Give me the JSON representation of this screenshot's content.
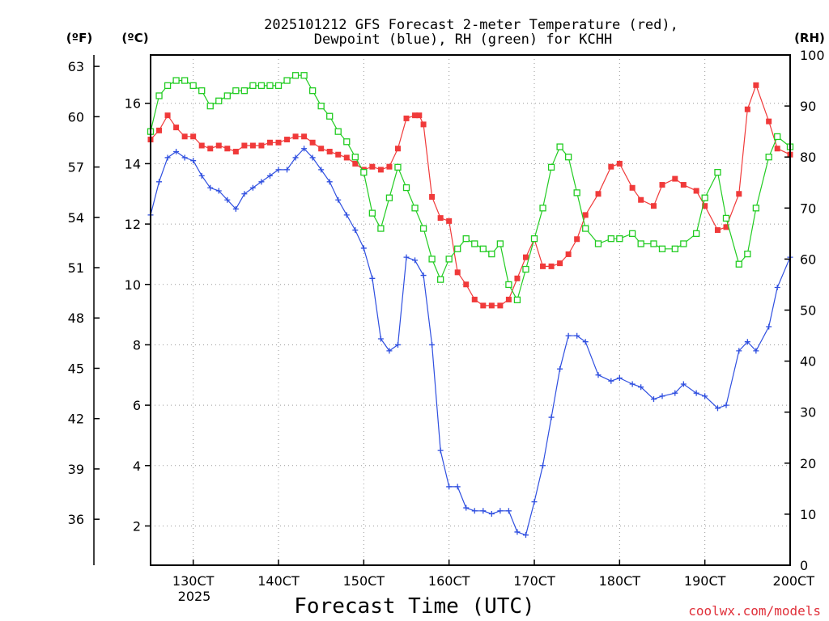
{
  "title_line1": "2025101212 GFS Forecast 2-meter Temperature (red),",
  "title_line2": "Dewpoint (blue), RH (green) for KCHH",
  "units": {
    "left_f": "(ºF)",
    "left_c": "(ºC)",
    "right_rh": "(RH)"
  },
  "xlabel": "Forecast Time (UTC)",
  "credit": "coolwx.com/models",
  "year_label": "2025",
  "colors": {
    "temperature": "#f03a3a",
    "dewpoint": "#2f4fe0",
    "rh": "#22cc22",
    "credit": "#e0303a"
  },
  "chart_data": {
    "type": "line",
    "title": "2025101212 GFS Forecast 2-meter Temperature (red), Dewpoint (blue), RH (green) for KCHH",
    "xlabel": "Forecast Time (UTC)",
    "x_unit": "day of October 2025 (fractional)",
    "xlim": [
      12.5,
      20.0
    ],
    "x_ticks": [
      {
        "x": 13,
        "label": "130CT"
      },
      {
        "x": 14,
        "label": "140CT"
      },
      {
        "x": 15,
        "label": "150CT"
      },
      {
        "x": 16,
        "label": "160CT"
      },
      {
        "x": 17,
        "label": "170CT"
      },
      {
        "x": 18,
        "label": "180CT"
      },
      {
        "x": 19,
        "label": "190CT"
      },
      {
        "x": 20,
        "label": "200CT"
      }
    ],
    "y_celsius": {
      "ylim": [
        0.7,
        17.6
      ],
      "ticks": [
        2,
        4,
        6,
        8,
        10,
        12,
        14,
        16
      ]
    },
    "y_fahrenheit": {
      "ticks": [
        36,
        39,
        42,
        45,
        48,
        51,
        54,
        57,
        60,
        63
      ]
    },
    "y_rh": {
      "ylim": [
        0,
        100
      ],
      "ticks": [
        0,
        10,
        20,
        30,
        40,
        50,
        60,
        70,
        80,
        90,
        100
      ]
    },
    "series": [
      {
        "name": "Temperature (red)",
        "axis": "celsius",
        "marker": "filled-square",
        "x": [
          12.5,
          12.6,
          12.7,
          12.8,
          12.9,
          13.0,
          13.1,
          13.2,
          13.3,
          13.4,
          13.5,
          13.6,
          13.7,
          13.8,
          13.9,
          14.0,
          14.1,
          14.2,
          14.3,
          14.4,
          14.5,
          14.6,
          14.7,
          14.8,
          14.9,
          15.0,
          15.1,
          15.2,
          15.3,
          15.4,
          15.5,
          15.6,
          15.65,
          15.7,
          15.8,
          15.9,
          16.0,
          16.1,
          16.2,
          16.3,
          16.4,
          16.5,
          16.6,
          16.7,
          16.8,
          16.9,
          17.0,
          17.1,
          17.2,
          17.3,
          17.4,
          17.5,
          17.6,
          17.75,
          17.9,
          18.0,
          18.15,
          18.25,
          18.4,
          18.5,
          18.65,
          18.75,
          18.9,
          19.0,
          19.15,
          19.25,
          19.4,
          19.5,
          19.6,
          19.75,
          19.85,
          20.0
        ],
        "values": [
          14.8,
          15.1,
          15.6,
          15.2,
          14.9,
          14.9,
          14.6,
          14.5,
          14.6,
          14.5,
          14.4,
          14.6,
          14.6,
          14.6,
          14.7,
          14.7,
          14.8,
          14.9,
          14.9,
          14.7,
          14.5,
          14.4,
          14.3,
          14.2,
          14.0,
          13.8,
          13.9,
          13.8,
          13.9,
          14.5,
          15.5,
          15.6,
          15.6,
          15.3,
          12.9,
          12.2,
          12.1,
          10.4,
          10.0,
          9.5,
          9.3,
          9.3,
          9.3,
          9.5,
          10.2,
          10.9,
          11.5,
          10.6,
          10.6,
          10.7,
          11.0,
          11.5,
          12.3,
          13.0,
          13.9,
          14.0,
          13.2,
          12.8,
          12.6,
          13.3,
          13.5,
          13.3,
          13.1,
          12.6,
          11.8,
          11.9,
          13.0,
          15.8,
          16.6,
          15.4,
          14.5,
          14.3
        ]
      },
      {
        "name": "Dewpoint (blue)",
        "axis": "celsius",
        "marker": "plus",
        "x": [
          12.5,
          12.6,
          12.7,
          12.8,
          12.9,
          13.0,
          13.1,
          13.2,
          13.3,
          13.4,
          13.5,
          13.6,
          13.7,
          13.8,
          13.9,
          14.0,
          14.1,
          14.2,
          14.3,
          14.4,
          14.5,
          14.6,
          14.7,
          14.8,
          14.9,
          15.0,
          15.1,
          15.2,
          15.3,
          15.4,
          15.5,
          15.6,
          15.7,
          15.8,
          15.9,
          16.0,
          16.1,
          16.2,
          16.3,
          16.4,
          16.5,
          16.6,
          16.7,
          16.8,
          16.9,
          17.0,
          17.1,
          17.2,
          17.3,
          17.4,
          17.5,
          17.6,
          17.75,
          17.9,
          18.0,
          18.15,
          18.25,
          18.4,
          18.5,
          18.65,
          18.75,
          18.9,
          19.0,
          19.15,
          19.25,
          19.4,
          19.5,
          19.6,
          19.75,
          19.85,
          20.0
        ],
        "values": [
          12.3,
          13.4,
          14.2,
          14.4,
          14.2,
          14.1,
          13.6,
          13.2,
          13.1,
          12.8,
          12.5,
          13.0,
          13.2,
          13.4,
          13.6,
          13.8,
          13.8,
          14.2,
          14.5,
          14.2,
          13.8,
          13.4,
          12.8,
          12.3,
          11.8,
          11.2,
          10.2,
          8.2,
          7.8,
          8.0,
          10.9,
          10.8,
          10.3,
          8.0,
          4.5,
          3.3,
          3.3,
          2.6,
          2.5,
          2.5,
          2.4,
          2.5,
          2.5,
          1.8,
          1.7,
          2.8,
          4.0,
          5.6,
          7.2,
          8.3,
          8.3,
          8.1,
          7.0,
          6.8,
          6.9,
          6.7,
          6.6,
          6.2,
          6.3,
          6.4,
          6.7,
          6.4,
          6.3,
          5.9,
          6.0,
          7.8,
          8.1,
          7.8,
          8.6,
          9.9,
          10.9
        ]
      },
      {
        "name": "RH (green)",
        "axis": "rh",
        "marker": "open-square",
        "x": [
          12.5,
          12.6,
          12.7,
          12.8,
          12.9,
          13.0,
          13.1,
          13.2,
          13.3,
          13.4,
          13.5,
          13.6,
          13.7,
          13.8,
          13.9,
          14.0,
          14.1,
          14.2,
          14.3,
          14.4,
          14.5,
          14.6,
          14.7,
          14.8,
          14.9,
          15.0,
          15.1,
          15.2,
          15.3,
          15.4,
          15.5,
          15.6,
          15.7,
          15.8,
          15.9,
          16.0,
          16.1,
          16.2,
          16.3,
          16.4,
          16.5,
          16.6,
          16.7,
          16.8,
          16.9,
          17.0,
          17.1,
          17.2,
          17.3,
          17.4,
          17.5,
          17.6,
          17.75,
          17.9,
          18.0,
          18.15,
          18.25,
          18.4,
          18.5,
          18.65,
          18.75,
          18.9,
          19.0,
          19.15,
          19.25,
          19.4,
          19.5,
          19.6,
          19.75,
          19.85,
          20.0
        ],
        "values": [
          85,
          92,
          94,
          95,
          95,
          94,
          93,
          90,
          91,
          92,
          93,
          93,
          94,
          94,
          94,
          94,
          95,
          96,
          96,
          93,
          90,
          88,
          85,
          83,
          80,
          77,
          69,
          66,
          72,
          78,
          74,
          70,
          66,
          60,
          56,
          60,
          62,
          64,
          63,
          62,
          61,
          63,
          55,
          52,
          58,
          64,
          70,
          78,
          82,
          80,
          73,
          66,
          63,
          64,
          64,
          65,
          63,
          63,
          62,
          62,
          63,
          65,
          72,
          77,
          68,
          59,
          61,
          70,
          80,
          84,
          82
        ]
      }
    ]
  }
}
